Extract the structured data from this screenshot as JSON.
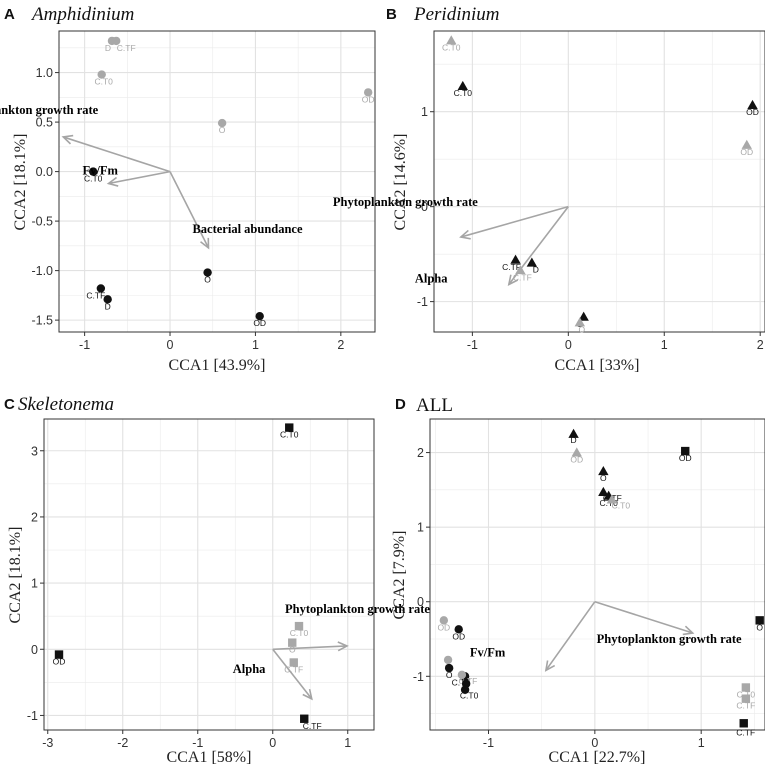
{
  "colors": {
    "black": "#111111",
    "grey": "#a8a8a8",
    "arrow": "#a5a5a5",
    "grid": "#ebebeb",
    "frame": "#333333"
  },
  "chart_data": [
    {
      "id": "A",
      "type": "scatter",
      "letter": "A",
      "title": "Amphidinium",
      "title_italic": true,
      "xlabel": "CCA1   [43.9%]",
      "ylabel": "CCA2   [18.1%]",
      "xlim": [
        -1.3,
        2.4
      ],
      "ylim": [
        -1.62,
        1.42
      ],
      "xticks": [
        -1,
        0,
        1,
        2
      ],
      "yticks": [
        -1.5,
        -1.0,
        -0.5,
        0.0,
        0.5,
        1.0
      ],
      "ytick_labels": [
        "-1.5",
        "-1.0",
        "-0.5",
        "0.0",
        "0.5",
        "1.0"
      ],
      "points": [
        {
          "x": -0.68,
          "y": 1.32,
          "shape": "circle",
          "color": "grey",
          "label": "D"
        },
        {
          "x": -0.63,
          "y": 1.32,
          "shape": "circle",
          "color": "grey",
          "label": "C.TF"
        },
        {
          "x": -0.8,
          "y": 0.98,
          "shape": "circle",
          "color": "grey",
          "label": "C.T0"
        },
        {
          "x": 0.61,
          "y": 0.49,
          "shape": "circle",
          "color": "grey",
          "label": "O"
        },
        {
          "x": 2.32,
          "y": 0.8,
          "shape": "circle",
          "color": "grey",
          "label": "OD"
        },
        {
          "x": -0.9,
          "y": 0.0,
          "shape": "circle",
          "color": "black",
          "label": "C.T0"
        },
        {
          "x": 0.44,
          "y": -1.02,
          "shape": "circle",
          "color": "black",
          "label": "O"
        },
        {
          "x": -0.81,
          "y": -1.18,
          "shape": "circle",
          "color": "black",
          "label": "C.TF"
        },
        {
          "x": -0.73,
          "y": -1.29,
          "shape": "circle",
          "color": "black",
          "label": "D"
        },
        {
          "x": 1.05,
          "y": -1.46,
          "shape": "circle",
          "color": "black",
          "label": "OD"
        }
      ],
      "vectors": [
        {
          "x": -1.25,
          "y": 0.35,
          "label": "Phytoplankton growth rate"
        },
        {
          "x": -0.72,
          "y": -0.12,
          "label": "Fv/Fm"
        },
        {
          "x": 0.45,
          "y": -0.77,
          "label": "Bacterial abundance"
        }
      ]
    },
    {
      "id": "B",
      "type": "scatter",
      "letter": "B",
      "title": "Peridinium",
      "title_italic": true,
      "xlabel": "CCA1   [33%]",
      "ylabel": "CCA2   [14.6%]",
      "xlim": [
        -1.4,
        2.05
      ],
      "ylim": [
        -1.32,
        1.85
      ],
      "xticks": [
        -1,
        0,
        1,
        2
      ],
      "yticks": [
        -1,
        0,
        1
      ],
      "ytick_labels": [
        "-1",
        "0",
        "1"
      ],
      "points": [
        {
          "x": -1.22,
          "y": 1.75,
          "shape": "triangle",
          "color": "grey",
          "label": "C.T0"
        },
        {
          "x": -1.1,
          "y": 1.27,
          "shape": "triangle",
          "color": "black",
          "label": "C.T0"
        },
        {
          "x": 1.92,
          "y": 1.07,
          "shape": "triangle",
          "color": "black",
          "label": "OD"
        },
        {
          "x": 1.86,
          "y": 0.65,
          "shape": "triangle",
          "color": "grey",
          "label": "OD"
        },
        {
          "x": -0.55,
          "y": -0.56,
          "shape": "triangle",
          "color": "black",
          "label": "C.TF"
        },
        {
          "x": -0.38,
          "y": -0.59,
          "shape": "triangle",
          "color": "black",
          "label": "D"
        },
        {
          "x": -0.5,
          "y": -0.67,
          "shape": "triangle",
          "color": "grey",
          "label": "C.TF"
        },
        {
          "x": 0.16,
          "y": -1.16,
          "shape": "triangle",
          "color": "black",
          "label": "O"
        },
        {
          "x": 0.12,
          "y": -1.22,
          "shape": "triangle",
          "color": "grey",
          "label": "O"
        }
      ],
      "vectors": [
        {
          "x": -1.12,
          "y": -0.32,
          "label": "Phytoplankton growth rate"
        },
        {
          "x": -0.62,
          "y": -0.82,
          "label": "Alpha"
        }
      ]
    },
    {
      "id": "C",
      "type": "scatter",
      "letter": "C",
      "title": "Skeletonema",
      "title_italic": true,
      "xlabel": "CCA1   [58%]",
      "ylabel": "CCA2   [18.1%]",
      "xlim": [
        -3.05,
        1.35
      ],
      "ylim": [
        -1.22,
        3.48
      ],
      "xticks": [
        -3,
        -2,
        -1,
        0,
        1
      ],
      "yticks": [
        -1,
        0,
        1,
        2,
        3
      ],
      "ytick_labels": [
        "-1",
        "0",
        "1",
        "2",
        "3"
      ],
      "points": [
        {
          "x": 0.22,
          "y": 3.35,
          "shape": "square",
          "color": "black",
          "label": "C.T0"
        },
        {
          "x": -2.85,
          "y": -0.08,
          "shape": "square",
          "color": "black",
          "label": "OD"
        },
        {
          "x": 0.35,
          "y": 0.35,
          "shape": "square",
          "color": "grey",
          "label": "C.T0"
        },
        {
          "x": 0.26,
          "y": 0.1,
          "shape": "square",
          "color": "grey",
          "label": "O"
        },
        {
          "x": 0.28,
          "y": -0.2,
          "shape": "square",
          "color": "grey",
          "label": "C.TF"
        },
        {
          "x": 0.42,
          "y": -1.05,
          "shape": "square",
          "color": "black",
          "label": "C.TF"
        }
      ],
      "vectors": [
        {
          "x": 0.99,
          "y": 0.05,
          "label": "Phytoplankton growth rate"
        },
        {
          "x": 0.52,
          "y": -0.75,
          "label": "Alpha"
        }
      ]
    },
    {
      "id": "D",
      "type": "scatter",
      "letter": "D",
      "title": "ALL",
      "title_italic": false,
      "xlabel": "CCA1   [22.7%]",
      "ylabel": "CCA2   [7.9%]",
      "xlim": [
        -1.55,
        1.6
      ],
      "ylim": [
        -1.72,
        2.45
      ],
      "xticks": [
        -1,
        0,
        1
      ],
      "yticks": [
        -1,
        0,
        1,
        2
      ],
      "ytick_labels": [
        "-1",
        "0",
        "1",
        "2"
      ],
      "points": [
        {
          "x": -0.2,
          "y": 2.25,
          "shape": "triangle",
          "color": "black",
          "label": "D"
        },
        {
          "x": -0.17,
          "y": 2.0,
          "shape": "triangle",
          "color": "grey",
          "label": "OD"
        },
        {
          "x": 0.85,
          "y": 2.02,
          "shape": "square",
          "color": "black",
          "label": "OD"
        },
        {
          "x": 0.08,
          "y": 1.75,
          "shape": "triangle",
          "color": "black",
          "label": "O"
        },
        {
          "x": 0.08,
          "y": 1.47,
          "shape": "triangle",
          "color": "black",
          "label": "C.TF"
        },
        {
          "x": 0.13,
          "y": 1.42,
          "shape": "triangle",
          "color": "black",
          "label": "C.T0"
        },
        {
          "x": 0.16,
          "y": 1.37,
          "shape": "triangle",
          "color": "grey",
          "label": "C.T0"
        },
        {
          "x": -1.42,
          "y": -0.25,
          "shape": "circle",
          "color": "grey",
          "label": "OD"
        },
        {
          "x": -1.28,
          "y": -0.37,
          "shape": "circle",
          "color": "black",
          "label": "OD"
        },
        {
          "x": -1.38,
          "y": -0.78,
          "shape": "circle",
          "color": "grey",
          "label": "O"
        },
        {
          "x": -1.37,
          "y": -0.89,
          "shape": "circle",
          "color": "black",
          "label": "O"
        },
        {
          "x": -1.22,
          "y": -1.0,
          "shape": "circle",
          "color": "black",
          "label": "C.TF"
        },
        {
          "x": -1.25,
          "y": -0.98,
          "shape": "circle",
          "color": "grey",
          "label": "C.TF"
        },
        {
          "x": -1.21,
          "y": -1.1,
          "shape": "circle",
          "color": "black",
          "label": "D"
        },
        {
          "x": -1.22,
          "y": -1.18,
          "shape": "circle",
          "color": "black",
          "label": "C.T0"
        },
        {
          "x": 1.55,
          "y": -0.25,
          "shape": "square",
          "color": "black",
          "label": "O"
        },
        {
          "x": 1.42,
          "y": -1.15,
          "shape": "square",
          "color": "grey",
          "label": "C.T0"
        },
        {
          "x": 1.42,
          "y": -1.3,
          "shape": "square",
          "color": "grey",
          "label": "C.TF"
        },
        {
          "x": 1.4,
          "y": -1.63,
          "shape": "square",
          "color": "black",
          "label": "C.TF"
        }
      ],
      "vectors": [
        {
          "x": 0.92,
          "y": -0.42,
          "label": "Phytoplankton growth rate"
        },
        {
          "x": -0.46,
          "y": -0.92,
          "label": "Fv/Fm"
        }
      ]
    }
  ]
}
